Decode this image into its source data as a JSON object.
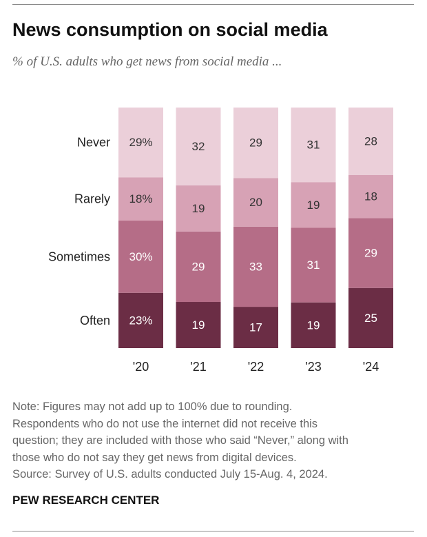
{
  "header": {
    "title": "News consumption on social media",
    "subtitle": "% of U.S. adults who get news from social media ..."
  },
  "chart_data": {
    "type": "bar",
    "stacked": true,
    "orientation": "vertical",
    "normalized_to": 100,
    "categories": [
      "'20",
      "'21",
      "'22",
      "'23",
      "'24"
    ],
    "series": [
      {
        "name": "Often",
        "values": [
          23,
          19,
          17,
          19,
          25
        ],
        "labels": [
          "23%",
          "19",
          "17",
          "19",
          "25"
        ],
        "color": "#6b2d45"
      },
      {
        "name": "Sometimes",
        "values": [
          30,
          29,
          33,
          31,
          29
        ],
        "labels": [
          "30%",
          "29",
          "33",
          "31",
          "29"
        ],
        "color": "#b56d87"
      },
      {
        "name": "Rarely",
        "values": [
          18,
          19,
          20,
          19,
          18
        ],
        "labels": [
          "18%",
          "19",
          "20",
          "19",
          "18"
        ],
        "color": "#d7a2b5"
      },
      {
        "name": "Never",
        "values": [
          29,
          32,
          29,
          31,
          28
        ],
        "labels": [
          "29%",
          "32",
          "29",
          "31",
          "28"
        ],
        "color": "#ebcfd9"
      }
    ],
    "label_colors": {
      "Often": "#ffffff",
      "Sometimes": "#ffffff",
      "Rarely": "#333333",
      "Never": "#333333"
    },
    "legend": "left, inline beside first bar",
    "grid": false
  },
  "footer": {
    "note_lines": [
      "Note: Figures may not add up to 100% due to rounding.",
      "Respondents who do not use the internet did not receive this",
      "question; they are included with those who said “Never,” along with",
      "those who do not say they get news from digital devices."
    ],
    "source": "Source: Survey of U.S. adults conducted July 15-Aug. 4, 2024.",
    "brand": "PEW RESEARCH CENTER"
  }
}
